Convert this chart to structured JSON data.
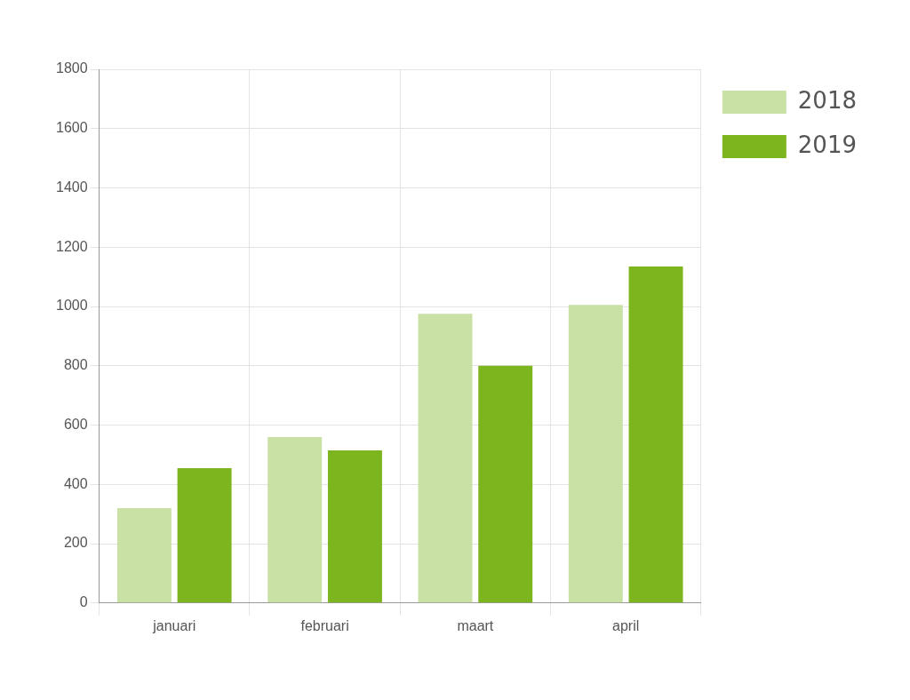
{
  "chart_data": {
    "type": "bar",
    "categories": [
      "januari",
      "februari",
      "maart",
      "april"
    ],
    "series": [
      {
        "name": "2018",
        "color": "#c9e1a5",
        "values": [
          320,
          560,
          975,
          1005
        ]
      },
      {
        "name": "2019",
        "color": "#7cb51e",
        "values": [
          455,
          515,
          800,
          1135
        ]
      }
    ],
    "ylim": [
      0,
      1800
    ],
    "yticks": [
      0,
      200,
      400,
      600,
      800,
      1000,
      1200,
      1400,
      1600,
      1800
    ],
    "grid": true,
    "legend": "top right"
  }
}
